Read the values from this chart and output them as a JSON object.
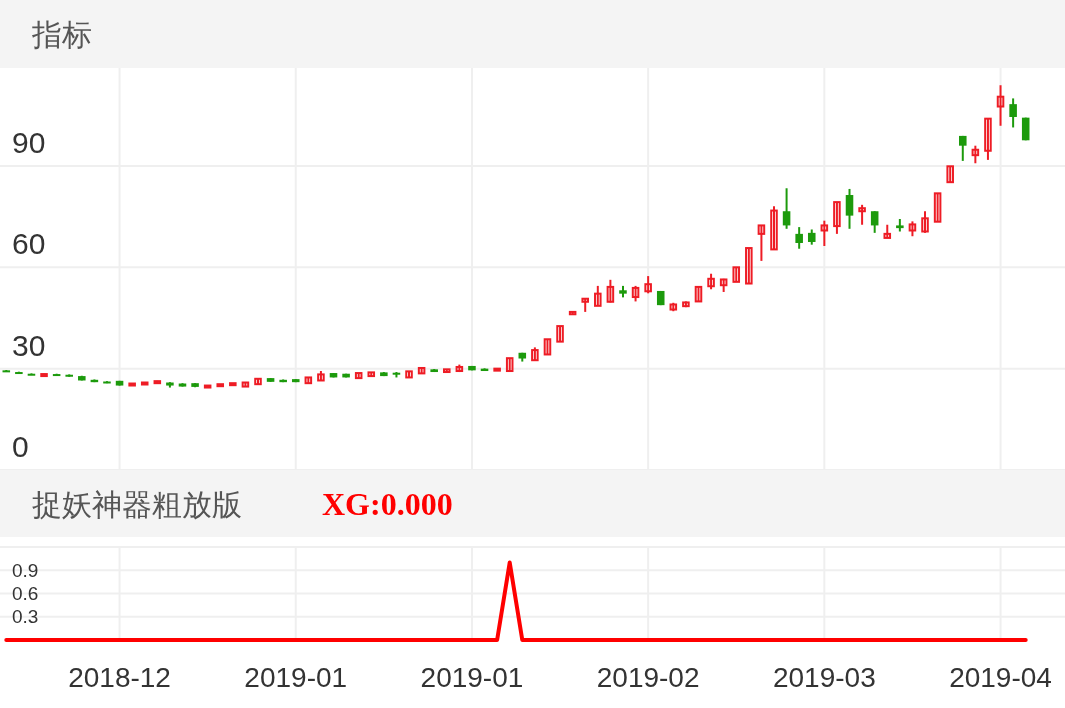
{
  "chart_data": [
    {
      "type": "candlestick",
      "title": "指标",
      "categories": [
        null,
        null,
        null,
        null,
        null,
        null,
        null,
        null,
        null,
        "2018-12",
        null,
        null,
        null,
        null,
        null,
        null,
        null,
        null,
        null,
        null,
        null,
        null,
        null,
        "2019-01",
        null,
        null,
        null,
        null,
        null,
        null,
        null,
        null,
        null,
        null,
        null,
        null,
        null,
        "2019-01",
        null,
        null,
        null,
        null,
        null,
        null,
        null,
        null,
        null,
        null,
        null,
        null,
        null,
        "2019-02",
        null,
        null,
        null,
        null,
        null,
        null,
        null,
        null,
        null,
        null,
        null,
        null,
        null,
        "2019-03",
        null,
        null,
        null,
        null,
        null,
        null,
        null,
        null,
        null,
        null,
        null,
        null,
        null,
        "2019-04",
        null,
        null
      ],
      "ohlc": [
        [
          29.5,
          29.6,
          29.1,
          29.2
        ],
        [
          29.0,
          29.1,
          28.6,
          28.7
        ],
        [
          28.5,
          28.6,
          28.1,
          28.2
        ],
        [
          28.2,
          28.5,
          28.1,
          28.4
        ],
        [
          28.4,
          28.5,
          28.0,
          28.1
        ],
        [
          28.2,
          28.3,
          27.6,
          27.8
        ],
        [
          27.8,
          27.9,
          26.5,
          26.5
        ],
        [
          26.7,
          26.8,
          26.0,
          26.0
        ],
        [
          26.2,
          26.3,
          25.7,
          25.7
        ],
        [
          26.4,
          26.4,
          25.0,
          25.0
        ],
        [
          25.1,
          25.7,
          25.0,
          25.6
        ],
        [
          25.4,
          26.0,
          25.3,
          25.9
        ],
        [
          25.7,
          26.4,
          25.6,
          26.3
        ],
        [
          25.9,
          26.0,
          24.4,
          25.0
        ],
        [
          25.6,
          25.7,
          24.7,
          24.7
        ],
        [
          25.7,
          25.7,
          24.5,
          24.6
        ],
        [
          24.5,
          25.0,
          24.4,
          25.0
        ],
        [
          24.9,
          25.4,
          24.8,
          25.4
        ],
        [
          25.2,
          25.7,
          25.2,
          25.7
        ],
        [
          24.7,
          25.9,
          24.7,
          25.9
        ],
        [
          25.4,
          27.0,
          25.4,
          27.0
        ],
        [
          27.2,
          27.2,
          26.1,
          26.1
        ],
        [
          26.7,
          26.8,
          26.0,
          26.0
        ],
        [
          26.9,
          26.9,
          26.0,
          26.0
        ],
        [
          25.7,
          27.4,
          25.7,
          27.4
        ],
        [
          26.5,
          29.3,
          26.5,
          28.3
        ],
        [
          28.7,
          28.7,
          27.4,
          27.4
        ],
        [
          28.5,
          28.5,
          27.4,
          27.4
        ],
        [
          27.2,
          28.7,
          27.2,
          28.7
        ],
        [
          27.8,
          28.9,
          27.8,
          28.9
        ],
        [
          28.9,
          29.0,
          27.8,
          27.8
        ],
        [
          28.8,
          29.0,
          27.4,
          28.3
        ],
        [
          27.4,
          29.2,
          27.4,
          29.2
        ],
        [
          28.6,
          30.2,
          28.6,
          30.2
        ],
        [
          29.8,
          29.9,
          29.0,
          29.0
        ],
        [
          29.0,
          29.8,
          29.0,
          29.8
        ],
        [
          29.3,
          31.2,
          29.0,
          30.5
        ],
        [
          30.8,
          30.8,
          29.5,
          29.5
        ],
        [
          30.0,
          30.1,
          29.3,
          29.3
        ],
        [
          29.5,
          30.0,
          29.5,
          30.0
        ],
        [
          29.3,
          33.1,
          29.3,
          33.1
        ],
        [
          34.7,
          34.7,
          32.1,
          33.0
        ],
        [
          32.5,
          36.3,
          32.5,
          35.5
        ],
        [
          34.2,
          38.7,
          34.2,
          38.7
        ],
        [
          38.0,
          42.6,
          38.0,
          42.6
        ],
        [
          46.1,
          46.8,
          46.1,
          46.8
        ],
        [
          49.8,
          50.9,
          46.8,
          50.7
        ],
        [
          48.6,
          54.5,
          48.6,
          52.2
        ],
        [
          49.8,
          56.3,
          49.6,
          54.2
        ],
        [
          53.2,
          54.5,
          51.1,
          52.2
        ],
        [
          51.2,
          54.5,
          49.9,
          53.9
        ],
        [
          52.9,
          57.4,
          52.3,
          55.0
        ],
        [
          53.0,
          53.0,
          48.8,
          48.8
        ],
        [
          47.5,
          49.5,
          47.0,
          49.0
        ],
        [
          48.5,
          49.9,
          48.2,
          49.6
        ],
        [
          49.9,
          54.2,
          49.9,
          54.2
        ],
        [
          54.4,
          58.1,
          53.5,
          56.6
        ],
        [
          54.7,
          56.6,
          52.7,
          56.4
        ],
        [
          55.7,
          60.0,
          55.7,
          60.0
        ],
        [
          55.2,
          65.7,
          55.2,
          65.7
        ],
        [
          69.9,
          72.4,
          61.9,
          72.4
        ],
        [
          65.3,
          78.1,
          65.3,
          76.8
        ],
        [
          76.6,
          83.4,
          71.4,
          72.4
        ],
        [
          69.9,
          71.9,
          65.5,
          67.2
        ],
        [
          70.2,
          71.2,
          66.7,
          67.5
        ],
        [
          70.9,
          73.8,
          66.3,
          72.4
        ],
        [
          72.2,
          79.3,
          69.9,
          79.3
        ],
        [
          81.4,
          83.2,
          71.4,
          75.3
        ],
        [
          76.6,
          78.5,
          72.6,
          77.5
        ],
        [
          76.6,
          76.6,
          70.2,
          72.4
        ],
        [
          68.7,
          72.6,
          68.7,
          69.9
        ],
        [
          72.4,
          74.3,
          70.6,
          71.6
        ],
        [
          70.9,
          73.6,
          69.2,
          72.7
        ],
        [
          70.6,
          76.6,
          70.2,
          74.5
        ],
        [
          73.5,
          81.9,
          73.5,
          81.9
        ],
        [
          85.2,
          89.9,
          85.2,
          89.9
        ],
        [
          98.9,
          98.9,
          91.5,
          96.0
        ],
        [
          93.2,
          96.0,
          90.8,
          94.8
        ],
        [
          94.5,
          104.0,
          91.8,
          104.0
        ],
        [
          107.6,
          113.9,
          101.9,
          110.5
        ],
        [
          108.3,
          110.0,
          101.4,
          104.5
        ],
        [
          104.3,
          104.3,
          97.6,
          97.6
        ]
      ],
      "ylim": [
        0,
        119
      ],
      "yticks": [
        0,
        30,
        60,
        90
      ],
      "grid": true,
      "tick_labels": "y"
    },
    {
      "type": "line",
      "title": "捉妖神器粗放版",
      "annotations": [
        "XG:0.000"
      ],
      "categories": [
        null,
        null,
        null,
        null,
        null,
        null,
        null,
        null,
        null,
        "2018-12",
        null,
        null,
        null,
        null,
        null,
        null,
        null,
        null,
        null,
        null,
        null,
        null,
        null,
        "2019-01",
        null,
        null,
        null,
        null,
        null,
        null,
        null,
        null,
        null,
        null,
        null,
        null,
        null,
        "2019-01",
        null,
        null,
        null,
        null,
        null,
        null,
        null,
        null,
        null,
        null,
        null,
        null,
        null,
        "2019-02",
        null,
        null,
        null,
        null,
        null,
        null,
        null,
        null,
        null,
        null,
        null,
        null,
        null,
        "2019-03",
        null,
        null,
        null,
        null,
        null,
        null,
        null,
        null,
        null,
        null,
        null,
        null,
        null,
        "2019-04",
        null,
        null
      ],
      "series": [
        {
          "color": "#ff0000",
          "values": [
            0,
            0,
            0,
            0,
            0,
            0,
            0,
            0,
            0,
            0,
            0,
            0,
            0,
            0,
            0,
            0,
            0,
            0,
            0,
            0,
            0,
            0,
            0,
            0,
            0,
            0,
            0,
            0,
            0,
            0,
            0,
            0,
            0,
            0,
            0,
            0,
            0,
            0,
            0,
            0,
            1,
            0,
            0,
            0,
            0,
            0,
            0,
            0,
            0,
            0,
            0,
            0,
            0,
            0,
            0,
            0,
            0,
            0,
            0,
            0,
            0,
            0,
            0,
            0,
            0,
            0,
            0,
            0,
            0,
            0,
            0,
            0,
            0,
            0,
            0,
            0,
            0,
            0,
            0,
            0,
            0,
            0
          ]
        }
      ],
      "ylim": [
        0,
        1.2
      ],
      "yticks": [
        0.3,
        0.6,
        0.9,
        {
          "value": 1.2,
          "label": null
        }
      ],
      "grid": true
    }
  ]
}
